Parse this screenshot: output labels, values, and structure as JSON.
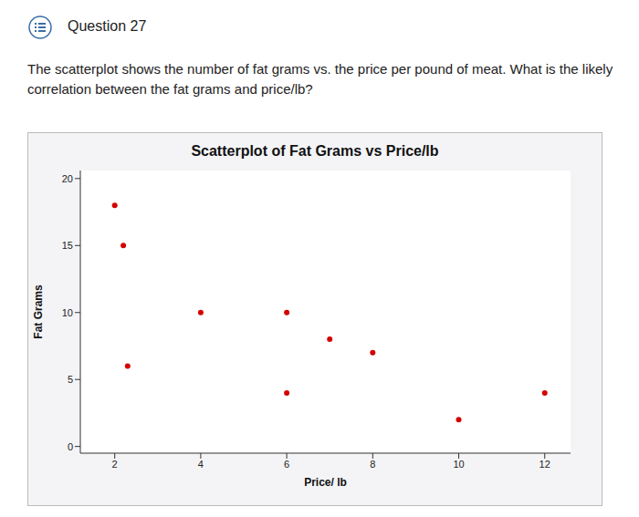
{
  "header": {
    "title": "Question 27"
  },
  "question": "The scatterplot shows the number of fat grams vs. the price per pound of meat. What is the likely correlation between the fat grams and price/lb?",
  "chart_data": {
    "type": "scatter",
    "title": "Scatterplot of Fat Grams vs Price/lb",
    "x_label": "Price/ lb",
    "y_label": "Fat Grams",
    "x": [
      2,
      2.2,
      2.3,
      4,
      6,
      6,
      7,
      8,
      10,
      12
    ],
    "values": [
      18,
      15,
      6,
      10,
      10,
      4,
      8,
      7,
      2,
      4
    ],
    "color": "#d40000",
    "marker": "circle",
    "xlim": [
      1.2,
      12.6
    ],
    "ylim": [
      -0.5,
      20.6
    ],
    "xticks": [
      2,
      4,
      6,
      8,
      10,
      12
    ],
    "yticks": [
      0,
      5,
      10,
      15,
      20
    ],
    "grid": false
  }
}
